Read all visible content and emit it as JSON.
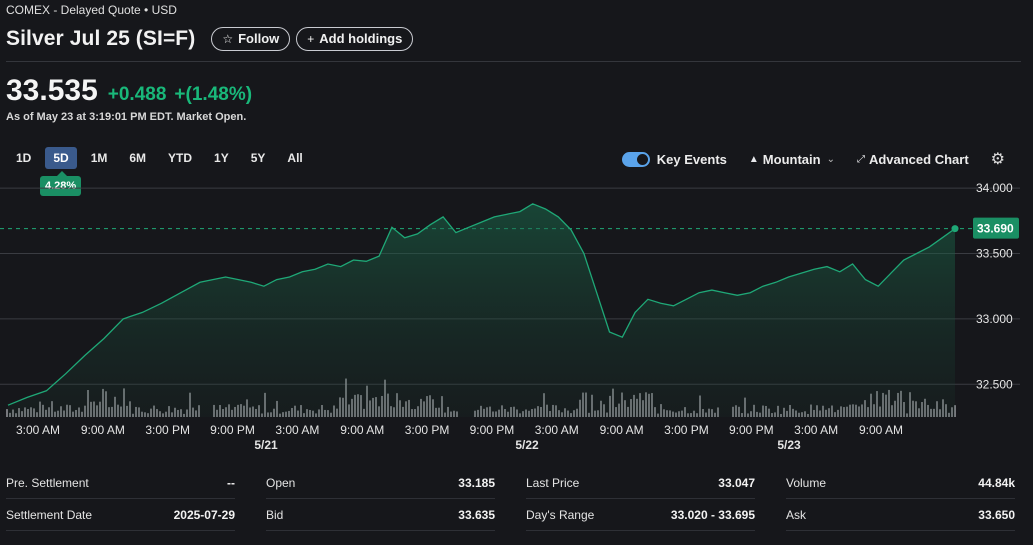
{
  "header": {
    "meta": "COMEX - Delayed Quote • USD",
    "title": "Silver Jul 25 (SI=F)",
    "follow_label": "Follow",
    "add_holdings_label": "Add holdings"
  },
  "quote": {
    "price": "33.535",
    "change": "+0.488",
    "change_pct": "+(1.48%)",
    "as_of": "As of May 23 at 3:19:01 PM EDT. Market Open.",
    "up_color": "#19b87a"
  },
  "ranges": {
    "buttons": [
      "1D",
      "5D",
      "1M",
      "6M",
      "YTD",
      "1Y",
      "5Y",
      "All"
    ],
    "active": "5D",
    "badge": "4.28%"
  },
  "tools": {
    "key_events_label": "Key Events",
    "key_events_on": true,
    "chart_type_label": "Mountain",
    "advanced_label": "Advanced Chart"
  },
  "chart_data": {
    "type": "area",
    "title": "",
    "xlabel": "",
    "ylabel": "",
    "ylim": [
      32.25,
      34.1
    ],
    "y_ticks": [
      34.0,
      33.5,
      33.0,
      32.5
    ],
    "y_tick_labels": [
      "34.000",
      "33.500",
      "33.000",
      "32.500"
    ],
    "last_value_label": "33.690",
    "last_value": 33.69,
    "x_tick_labels": [
      "3:00 AM",
      "9:00 AM",
      "3:00 PM",
      "9:00 PM",
      "3:00 AM",
      "9:00 AM",
      "3:00 PM",
      "9:00 PM",
      "3:00 AM",
      "9:00 AM",
      "3:00 PM",
      "9:00 PM",
      "3:00 AM",
      "9:00 AM"
    ],
    "date_labels": [
      "5/21",
      "5/22",
      "5/23"
    ],
    "series": [
      {
        "name": "Silver Jul 25",
        "x": [
          0,
          3,
          6,
          9,
          12,
          15,
          18,
          21,
          24,
          27,
          30,
          32,
          34,
          36,
          38,
          40,
          42,
          44,
          46,
          48,
          50,
          52,
          54,
          56,
          58,
          60,
          62,
          64,
          66,
          68,
          70,
          72,
          74,
          76,
          78,
          80,
          82,
          84,
          86,
          88,
          90,
          92,
          94,
          96,
          98,
          100,
          102,
          104,
          106,
          108,
          110,
          112,
          114,
          116,
          118,
          120,
          122,
          124,
          126,
          128,
          130,
          132,
          134,
          136,
          138,
          140,
          142,
          144,
          146,
          148
        ],
        "values": [
          32.34,
          32.4,
          32.45,
          32.58,
          32.72,
          32.85,
          33.0,
          33.05,
          33.12,
          33.2,
          33.28,
          33.3,
          33.32,
          33.3,
          33.28,
          33.25,
          33.3,
          33.32,
          33.36,
          33.38,
          33.42,
          33.4,
          33.45,
          33.44,
          33.48,
          33.7,
          33.62,
          33.65,
          33.72,
          33.78,
          33.66,
          33.7,
          33.74,
          33.78,
          33.8,
          33.82,
          33.88,
          33.84,
          33.78,
          33.68,
          33.5,
          33.2,
          32.9,
          32.86,
          33.05,
          33.15,
          33.12,
          33.1,
          33.15,
          33.2,
          33.22,
          33.2,
          33.18,
          33.2,
          33.25,
          33.28,
          33.32,
          33.35,
          33.38,
          33.4,
          33.36,
          33.42,
          33.3,
          33.25,
          33.35,
          33.45,
          33.5,
          33.55,
          33.62,
          33.69
        ]
      }
    ]
  },
  "stats": [
    [
      {
        "label": "Pre. Settlement",
        "value": "--"
      },
      {
        "label": "Open",
        "value": "33.185"
      },
      {
        "label": "Last Price",
        "value": "33.047"
      },
      {
        "label": "Volume",
        "value": "44.84k"
      }
    ],
    [
      {
        "label": "Settlement Date",
        "value": "2025-07-29"
      },
      {
        "label": "Bid",
        "value": "33.635"
      },
      {
        "label": "Day's Range",
        "value": "33.020 - 33.695"
      },
      {
        "label": "Ask",
        "value": "33.650"
      }
    ]
  ]
}
